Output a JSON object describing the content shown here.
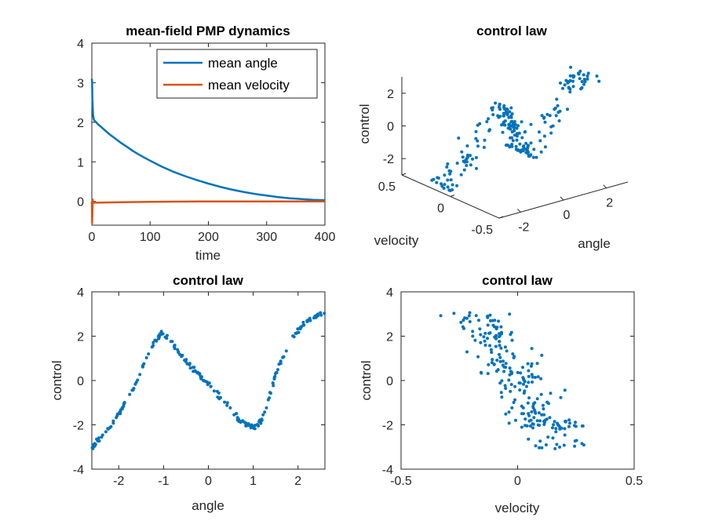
{
  "chart_data": [
    {
      "type": "line",
      "title": "mean-field PMP dynamics",
      "xlabel": "time",
      "ylabel": "",
      "xlim": [
        0,
        400
      ],
      "ylim": [
        -0.6,
        4
      ],
      "xticks": [
        0,
        100,
        200,
        300,
        400
      ],
      "yticks": [
        0,
        1,
        2,
        3,
        4
      ],
      "xtick_labels": [
        "0",
        "100",
        "200",
        "300",
        "400"
      ],
      "ytick_labels": [
        "0",
        "1",
        "2",
        "3",
        "4"
      ],
      "legend_position": "top-right",
      "series": [
        {
          "name": "mean angle",
          "color": "#0072bd",
          "x": [
            0,
            0.5,
            1,
            2,
            3,
            4,
            10,
            20,
            30,
            40,
            50,
            60,
            70,
            80,
            90,
            100,
            120,
            140,
            160,
            180,
            200,
            220,
            240,
            260,
            280,
            300,
            320,
            340,
            360,
            380,
            400
          ],
          "y": [
            3.1,
            3.0,
            2.6,
            2.2,
            2.1,
            2.05,
            1.96,
            1.83,
            1.7,
            1.59,
            1.48,
            1.38,
            1.28,
            1.19,
            1.11,
            1.03,
            0.88,
            0.75,
            0.64,
            0.54,
            0.45,
            0.37,
            0.3,
            0.24,
            0.19,
            0.15,
            0.11,
            0.08,
            0.06,
            0.04,
            0.03
          ]
        },
        {
          "name": "mean velocity",
          "color": "#d95319",
          "x": [
            0,
            0.5,
            1,
            1.5,
            2,
            3,
            5,
            10,
            50,
            100,
            200,
            300,
            400
          ],
          "y": [
            0.0,
            -0.55,
            -0.3,
            0.05,
            -0.05,
            -0.03,
            -0.03,
            -0.03,
            -0.02,
            -0.01,
            0.0,
            0.0,
            0.0
          ]
        }
      ]
    },
    {
      "type": "scatter3d",
      "title": "control law",
      "xlabel": "angle",
      "ylabel": "velocity",
      "zlabel": "control",
      "xlim": [
        -3,
        3
      ],
      "ylim": [
        -0.5,
        0.5
      ],
      "zlim": [
        -3,
        3
      ],
      "xticks": [
        -2,
        0,
        2
      ],
      "yticks": [
        -0.5,
        0,
        0.5
      ],
      "zticks": [
        -2,
        0,
        2
      ],
      "xtick_labels": [
        "-2",
        "0",
        "2"
      ],
      "ytick_labels": [
        "-0.5",
        "0",
        "0.5"
      ],
      "ztick_labels": [
        "-2",
        "0",
        "2"
      ],
      "color": "#0072bd",
      "points_note": "same point cloud as the angle/velocity/control panels"
    },
    {
      "type": "scatter",
      "title": "control law",
      "xlabel": "angle",
      "ylabel": "control",
      "xlim": [
        -2.6,
        2.6
      ],
      "ylim": [
        -4,
        4
      ],
      "xticks": [
        -2,
        -1,
        0,
        1,
        2
      ],
      "yticks": [
        -4,
        -2,
        0,
        2,
        4
      ],
      "xtick_labels": [
        "-2",
        "-1",
        "0",
        "1",
        "2"
      ],
      "ytick_labels": [
        "-4",
        "-2",
        "0",
        "2",
        "4"
      ],
      "color": "#0072bd",
      "curve_samples": {
        "angle": [
          -2.6,
          -2.4,
          -2.2,
          -2.0,
          -1.8,
          -1.6,
          -1.4,
          -1.2,
          -1.05,
          -0.9,
          -0.7,
          -0.5,
          -0.3,
          -0.1,
          0.1,
          0.3,
          0.5,
          0.7,
          0.9,
          1.05,
          1.2,
          1.35,
          1.5,
          1.7,
          1.9,
          2.1,
          2.3,
          2.5
        ],
        "control": [
          -3.0,
          -2.6,
          -2.1,
          -1.5,
          -0.8,
          -0.1,
          0.9,
          1.8,
          2.15,
          1.9,
          1.4,
          0.9,
          0.45,
          0.05,
          -0.35,
          -0.8,
          -1.3,
          -1.8,
          -2.05,
          -2.1,
          -1.8,
          -0.8,
          0.3,
          1.2,
          2.0,
          2.5,
          2.8,
          3.0
        ]
      }
    },
    {
      "type": "scatter",
      "title": "control law",
      "xlabel": "velocity",
      "ylabel": "control",
      "xlim": [
        -0.5,
        0.5
      ],
      "ylim": [
        -4,
        4
      ],
      "xticks": [
        -0.5,
        0,
        0.5
      ],
      "yticks": [
        -4,
        -2,
        0,
        2,
        4
      ],
      "xtick_labels": [
        "-0.5",
        "0",
        "0.5"
      ],
      "ytick_labels": [
        "-4",
        "-2",
        "0",
        "2",
        "4"
      ],
      "color": "#0072bd"
    }
  ]
}
